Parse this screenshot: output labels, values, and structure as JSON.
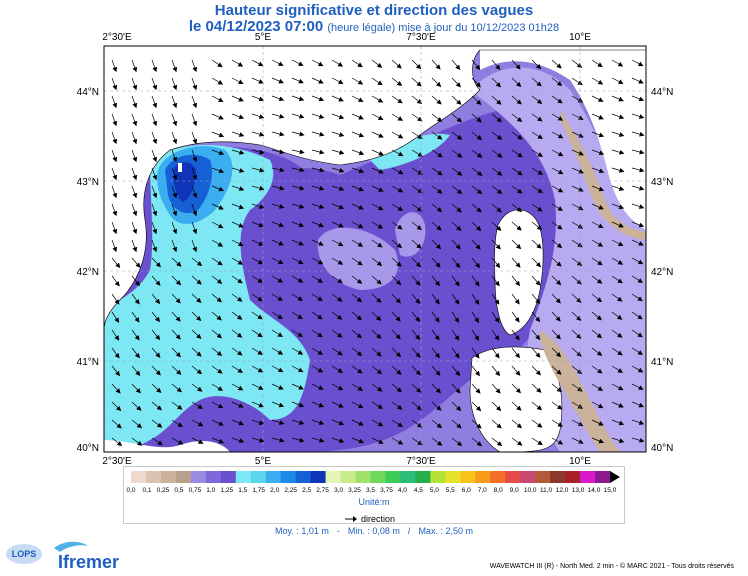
{
  "title": {
    "line1": "Hauteur significative et direction des vagues",
    "line2_main": "le 04/12/2023 07:00",
    "line2_small": "(heure légale) mise à jour du 10/12/2023 01h28"
  },
  "axes": {
    "lon_labels": [
      "2°30'E",
      "5°E",
      "7°30'E",
      "10°E"
    ],
    "lat_labels": [
      "44°N",
      "43°N",
      "42°N",
      "41°N",
      "40°N"
    ]
  },
  "legend": {
    "labels": [
      "0,0",
      "0,1",
      "0,25",
      "0,5",
      "0,75",
      "1,0",
      "1,25",
      "1,5",
      "1,75",
      "2,0",
      "2,25",
      "2,5",
      "2,75",
      "3,0",
      "3,25",
      "3,5",
      "3,75",
      "4,0",
      "4,5",
      "5,0",
      "5,5",
      "6,0",
      "7,0",
      "8,0",
      "9,0",
      "10,0",
      "11,0",
      "12,0",
      "13,0",
      "14,0",
      "15,0"
    ],
    "colors": [
      "#efd9cf",
      "#d9c3b2",
      "#cbb29b",
      "#b9a08d",
      "#9b8be3",
      "#7e68dc",
      "#6a4fcf",
      "#7de7f3",
      "#5ad6ec",
      "#3aaef0",
      "#1b8ae8",
      "#1560d4",
      "#1034b8",
      "#e7f5b4",
      "#c6ec8c",
      "#9ee26a",
      "#6fd85a",
      "#3ccc5a",
      "#2bbd7a",
      "#25b04a",
      "#b4e23a",
      "#e7e22a",
      "#f7c21a",
      "#f89a1a",
      "#f2702a",
      "#e84a4a",
      "#c84a72",
      "#b45a3a",
      "#8a3a2a",
      "#a8202a",
      "#d81ac8",
      "#8c1a8c"
    ],
    "unit": "Unité:m",
    "direction_label": "direction"
  },
  "stats": {
    "moy": "Moy. : 1,01 m",
    "min": "Min. : 0,08 m",
    "max": "Max. : 2,50 m"
  },
  "footer": "WAVEWATCH III (R) - North Med. 2 min - © MARC 2021 - Tous droits réservés",
  "logos": {
    "lops": "LOPS",
    "ifremer": "Ifremer"
  }
}
